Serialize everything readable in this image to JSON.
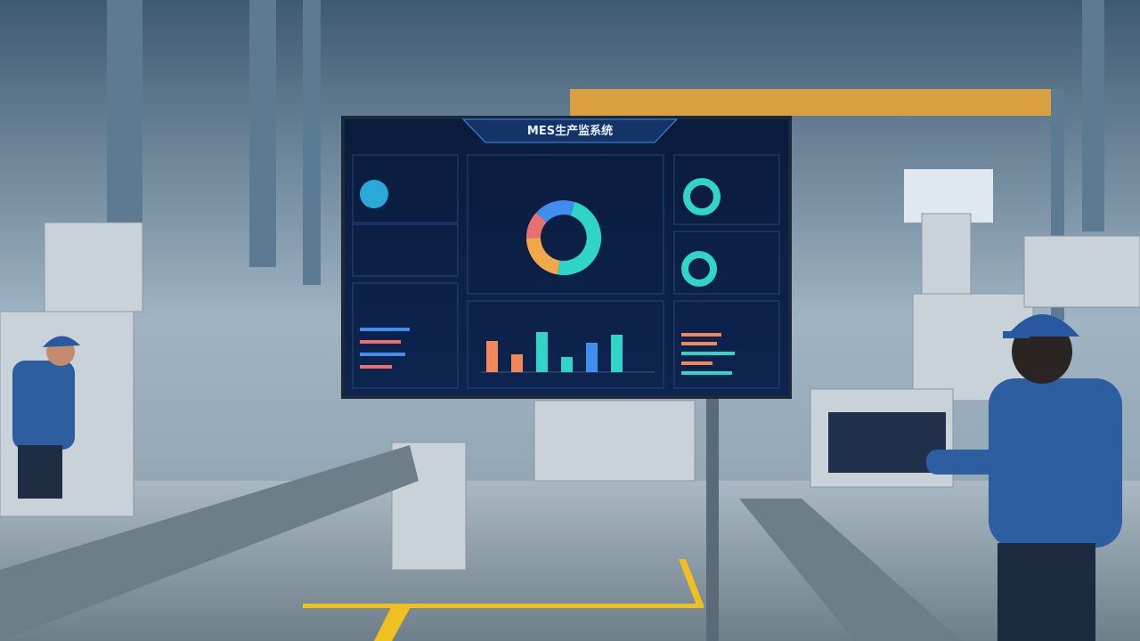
{
  "screen": {
    "title": "MES生产监系统",
    "donut": {
      "values": [
        48,
        22,
        12,
        18
      ],
      "colors": [
        "#2fd6c8",
        "#f0a848",
        "#e87070",
        "#3f8ef0"
      ]
    },
    "bars": {
      "values": [
        35,
        20,
        45,
        17,
        33,
        42
      ],
      "colors": [
        "#f0885a",
        "#f0885a",
        "#2fd6c8",
        "#2fd6c8",
        "#3f8ef0",
        "#2fd6c8"
      ]
    }
  }
}
